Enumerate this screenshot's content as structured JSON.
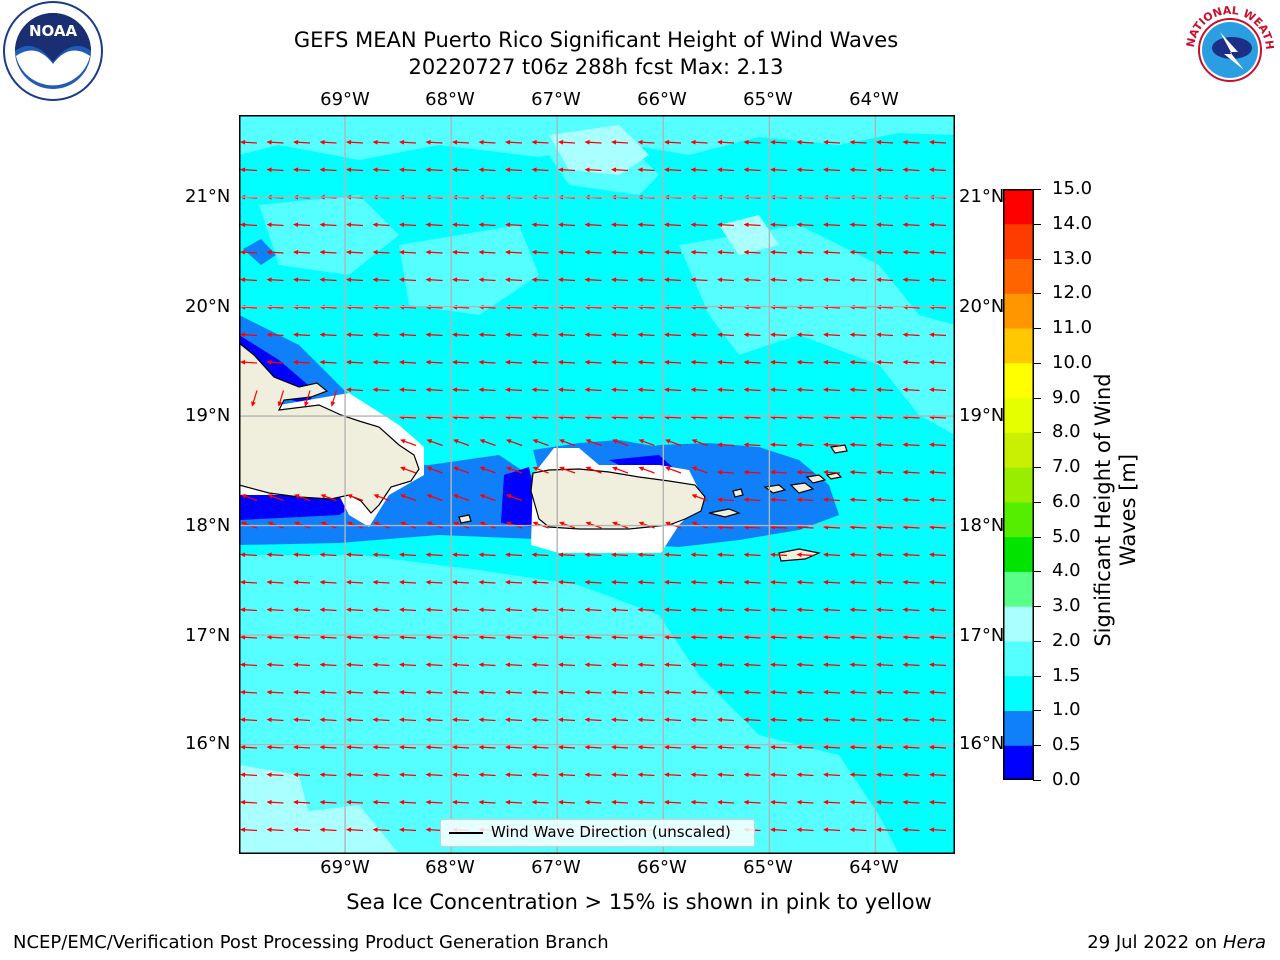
{
  "header": {
    "title_line1": "GEFS MEAN Puerto Rico Significant Height of Wind Waves",
    "title_line2": "20220727 t06z 288h fcst   Max: 2.13"
  },
  "axes": {
    "lon_labels": [
      "69°W",
      "68°W",
      "67°W",
      "66°W",
      "65°W",
      "64°W"
    ],
    "lat_labels": [
      "21°N",
      "20°N",
      "19°N",
      "18°N",
      "17°N",
      "16°N"
    ],
    "lon_range": [
      -70.0,
      -63.25
    ],
    "lat_range": [
      15.0,
      21.75
    ]
  },
  "colorbar": {
    "label": "Significant Height of Wind Waves [m]",
    "ticks": [
      "15.0",
      "14.0",
      "13.0",
      "12.0",
      "11.0",
      "10.0",
      "9.0",
      "8.0",
      "7.0",
      "6.0",
      "5.0",
      "4.0",
      "3.0",
      "2.0",
      "1.5",
      "1.0",
      "0.5",
      "0.0"
    ],
    "levels": [
      0.0,
      0.5,
      1.0,
      1.5,
      2.0,
      3.0,
      4.0,
      5.0,
      6.0,
      7.0,
      8.0,
      9.0,
      10.0,
      11.0,
      12.0,
      13.0,
      14.0,
      15.0
    ],
    "colors": [
      "#0000ff",
      "#0f7ffa",
      "#00ffff",
      "#56ffff",
      "#aaffff",
      "#58ff88",
      "#00e400",
      "#55ee00",
      "#99ee00",
      "#c8f000",
      "#e6ff00",
      "#ffff00",
      "#ffc800",
      "#ff9600",
      "#ff6400",
      "#ff3c00",
      "#ff0000"
    ]
  },
  "legend": {
    "label": "Wind Wave Direction (unscaled)"
  },
  "notes": {
    "ice": "Sea Ice Concentration > 15% is shown in pink to yellow"
  },
  "footer": {
    "left": "NCEP/EMC/Verification Post Processing Product Generation Branch",
    "date": "29 Jul 2022 on",
    "host": "Hera"
  },
  "logos": {
    "noaa_text": "NOAA",
    "nws_text": "NATIONAL WEATHER SERVICE"
  },
  "colors": {
    "land": "#f0eedc",
    "arrow": "#ff0000",
    "grid": "#b4b4b4"
  }
}
